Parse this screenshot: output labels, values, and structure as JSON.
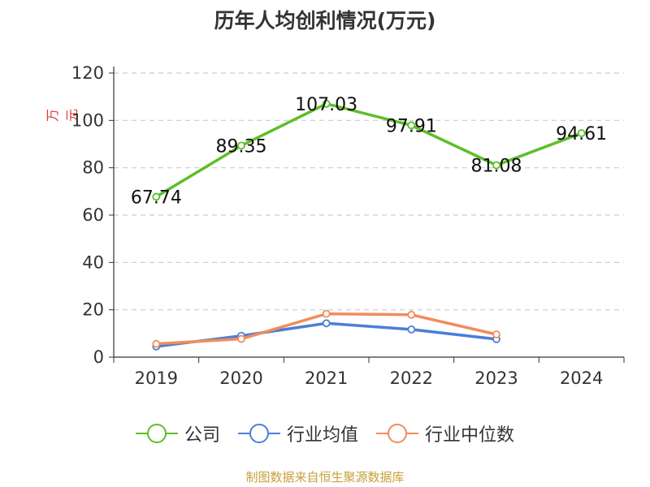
{
  "chart_data": {
    "type": "line",
    "title": "历年人均创利情况(万元)",
    "ylabel": "万元",
    "xlabel": "",
    "categories": [
      "2019",
      "2020",
      "2021",
      "2022",
      "2023",
      "2024"
    ],
    "ylim": [
      0,
      120
    ],
    "yticks": [
      0,
      20,
      40,
      60,
      80,
      100,
      120
    ],
    "grid": true,
    "legend_position": "bottom",
    "series": [
      {
        "name": "公司",
        "color": "#5cbf2a",
        "values": [
          67.74,
          89.35,
          107.03,
          97.91,
          81.08,
          94.61
        ],
        "labels": [
          "67.74",
          "89.35",
          "107.03",
          "97.91",
          "81.08",
          "94.61"
        ]
      },
      {
        "name": "行业均值",
        "color": "#4a7fd8",
        "values": [
          4.5,
          9.0,
          14.3,
          11.7,
          7.6,
          null
        ]
      },
      {
        "name": "行业中位数",
        "color": "#f28c5a",
        "values": [
          5.6,
          7.7,
          18.3,
          17.9,
          9.6,
          null
        ]
      }
    ]
  },
  "footer": {
    "source": "制图数据来自恒生聚源数据库"
  }
}
